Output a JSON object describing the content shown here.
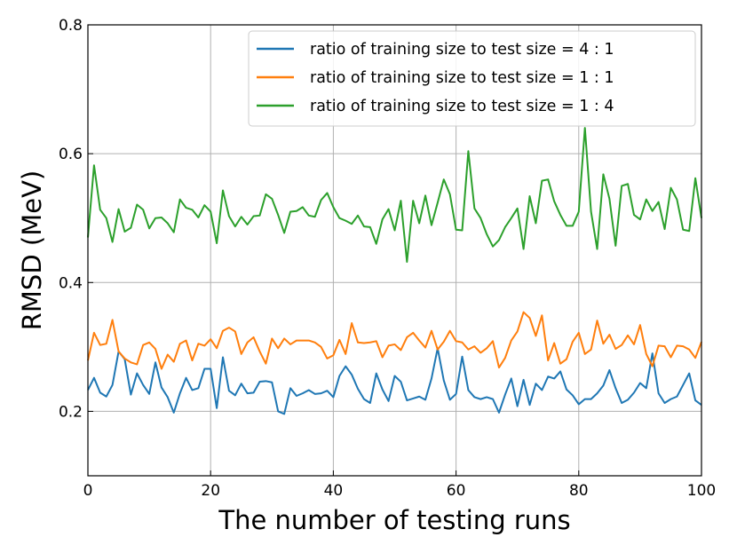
{
  "chart_data": {
    "type": "line",
    "title": "",
    "xlabel": "The number of testing runs",
    "ylabel": "RMSD (MeV)",
    "xlim": [
      0,
      100
    ],
    "ylim": [
      0.1,
      0.8
    ],
    "xticks": [
      0,
      20,
      40,
      60,
      80,
      100
    ],
    "xtick_labels": [
      "0",
      "20",
      "40",
      "60",
      "80",
      "100"
    ],
    "yticks": [
      0.2,
      0.4,
      0.6,
      0.8
    ],
    "ytick_labels": [
      "0.2",
      "0.4",
      "0.6",
      "0.8"
    ],
    "grid": true,
    "legend_position": "top-right",
    "x": [
      0,
      1,
      2,
      3,
      4,
      5,
      6,
      7,
      8,
      9,
      10,
      11,
      12,
      13,
      14,
      15,
      16,
      17,
      18,
      19,
      20,
      21,
      22,
      23,
      24,
      25,
      26,
      27,
      28,
      29,
      30,
      31,
      32,
      33,
      34,
      35,
      36,
      37,
      38,
      39,
      40,
      41,
      42,
      43,
      44,
      45,
      46,
      47,
      48,
      49,
      50,
      51,
      52,
      53,
      54,
      55,
      56,
      57,
      58,
      59,
      60,
      61,
      62,
      63,
      64,
      65,
      66,
      67,
      68,
      69,
      70,
      71,
      72,
      73,
      74,
      75,
      76,
      77,
      78,
      79,
      80,
      81,
      82,
      83,
      84,
      85,
      86,
      87,
      88,
      89,
      90,
      91,
      92,
      93,
      94,
      95,
      96,
      97,
      98,
      99,
      100
    ],
    "series": [
      {
        "name": "ratio of training size to test size = 4 : 1",
        "color": "#1f77b4",
        "values": [
          0.233,
          0.252,
          0.229,
          0.223,
          0.241,
          0.293,
          0.281,
          0.226,
          0.259,
          0.241,
          0.227,
          0.276,
          0.237,
          0.222,
          0.198,
          0.228,
          0.252,
          0.233,
          0.236,
          0.266,
          0.266,
          0.205,
          0.284,
          0.232,
          0.225,
          0.243,
          0.228,
          0.229,
          0.246,
          0.247,
          0.245,
          0.2,
          0.196,
          0.236,
          0.224,
          0.228,
          0.233,
          0.227,
          0.228,
          0.232,
          0.222,
          0.255,
          0.27,
          0.257,
          0.235,
          0.219,
          0.213,
          0.259,
          0.234,
          0.216,
          0.255,
          0.246,
          0.217,
          0.22,
          0.223,
          0.218,
          0.251,
          0.298,
          0.248,
          0.218,
          0.227,
          0.285,
          0.233,
          0.222,
          0.219,
          0.222,
          0.219,
          0.198,
          0.226,
          0.251,
          0.208,
          0.249,
          0.21,
          0.243,
          0.233,
          0.254,
          0.251,
          0.262,
          0.234,
          0.225,
          0.211,
          0.219,
          0.219,
          0.228,
          0.24,
          0.264,
          0.236,
          0.213,
          0.218,
          0.229,
          0.244,
          0.236,
          0.29,
          0.228,
          0.213,
          0.219,
          0.223,
          0.241,
          0.259,
          0.217,
          0.21
        ]
      },
      {
        "name": "ratio of training size to test size = 1 : 1",
        "color": "#ff7f0e",
        "values": [
          0.279,
          0.322,
          0.303,
          0.305,
          0.342,
          0.293,
          0.282,
          0.276,
          0.273,
          0.303,
          0.307,
          0.297,
          0.266,
          0.288,
          0.277,
          0.305,
          0.31,
          0.279,
          0.305,
          0.302,
          0.312,
          0.298,
          0.325,
          0.33,
          0.324,
          0.289,
          0.307,
          0.315,
          0.293,
          0.274,
          0.313,
          0.298,
          0.313,
          0.304,
          0.31,
          0.31,
          0.31,
          0.307,
          0.3,
          0.282,
          0.287,
          0.311,
          0.289,
          0.337,
          0.307,
          0.306,
          0.307,
          0.309,
          0.284,
          0.302,
          0.304,
          0.295,
          0.315,
          0.322,
          0.31,
          0.299,
          0.325,
          0.296,
          0.308,
          0.325,
          0.309,
          0.307,
          0.296,
          0.301,
          0.291,
          0.298,
          0.309,
          0.268,
          0.283,
          0.31,
          0.324,
          0.354,
          0.345,
          0.317,
          0.349,
          0.279,
          0.306,
          0.274,
          0.281,
          0.308,
          0.322,
          0.289,
          0.296,
          0.341,
          0.305,
          0.319,
          0.297,
          0.303,
          0.318,
          0.304,
          0.334,
          0.289,
          0.27,
          0.302,
          0.301,
          0.284,
          0.302,
          0.301,
          0.296,
          0.283,
          0.308
        ]
      },
      {
        "name": "ratio of training size to test size = 1 : 4",
        "color": "#2ca02c",
        "values": [
          0.47,
          0.582,
          0.513,
          0.5,
          0.463,
          0.514,
          0.479,
          0.485,
          0.521,
          0.513,
          0.484,
          0.5,
          0.501,
          0.492,
          0.478,
          0.529,
          0.516,
          0.513,
          0.501,
          0.52,
          0.51,
          0.461,
          0.543,
          0.503,
          0.487,
          0.502,
          0.49,
          0.503,
          0.504,
          0.537,
          0.53,
          0.505,
          0.477,
          0.51,
          0.511,
          0.517,
          0.504,
          0.502,
          0.528,
          0.539,
          0.517,
          0.5,
          0.496,
          0.491,
          0.504,
          0.487,
          0.486,
          0.46,
          0.498,
          0.514,
          0.481,
          0.527,
          0.432,
          0.527,
          0.492,
          0.535,
          0.489,
          0.524,
          0.56,
          0.537,
          0.482,
          0.481,
          0.604,
          0.515,
          0.5,
          0.475,
          0.456,
          0.466,
          0.486,
          0.5,
          0.515,
          0.452,
          0.534,
          0.492,
          0.558,
          0.56,
          0.526,
          0.505,
          0.488,
          0.488,
          0.51,
          0.64,
          0.51,
          0.452,
          0.568,
          0.53,
          0.457,
          0.55,
          0.553,
          0.505,
          0.498,
          0.529,
          0.511,
          0.525,
          0.483,
          0.547,
          0.529,
          0.482,
          0.48,
          0.562,
          0.5
        ]
      }
    ]
  }
}
